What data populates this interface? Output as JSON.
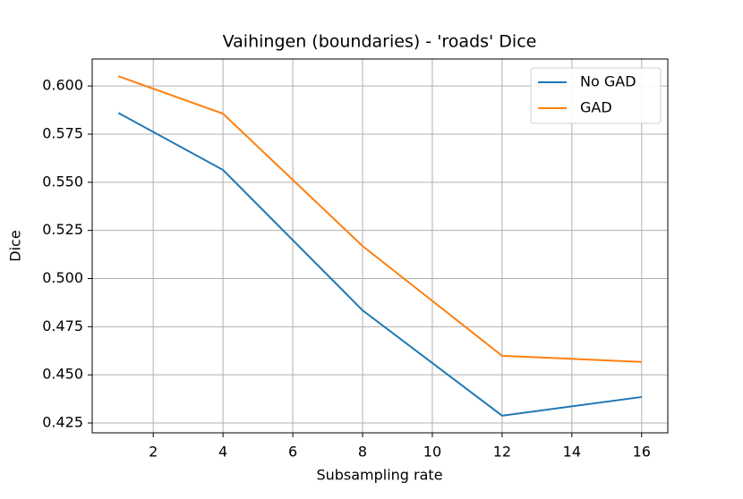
{
  "chart_data": {
    "type": "line",
    "title": "Vaihingen (boundaries) - 'roads' Dice",
    "xlabel": "Subsampling rate",
    "ylabel": "Dice",
    "x": [
      1,
      4,
      8,
      12,
      16
    ],
    "series": [
      {
        "name": "No GAD",
        "color": "#1f77b4",
        "values": [
          0.586,
          0.5564,
          0.4835,
          0.4288,
          0.4385
        ]
      },
      {
        "name": "GAD",
        "color": "#ff7f0e",
        "values": [
          0.6051,
          0.5856,
          0.5169,
          0.4599,
          0.4567
        ]
      }
    ],
    "xlim": [
      0.25,
      16.75
    ],
    "xticks": [
      2,
      4,
      6,
      8,
      10,
      12,
      14,
      16
    ],
    "ylim": [
      0.4199,
      0.614
    ],
    "yticks": [
      {
        "value": 0.425,
        "label": "0.425"
      },
      {
        "value": 0.45,
        "label": "0.450"
      },
      {
        "value": 0.475,
        "label": "0.475"
      },
      {
        "value": 0.5,
        "label": "0.500"
      },
      {
        "value": 0.525,
        "label": "0.525"
      },
      {
        "value": 0.55,
        "label": "0.550"
      },
      {
        "value": 0.575,
        "label": "0.575"
      },
      {
        "value": 0.6,
        "label": "0.600"
      }
    ],
    "grid": true,
    "legend": "upper right"
  }
}
